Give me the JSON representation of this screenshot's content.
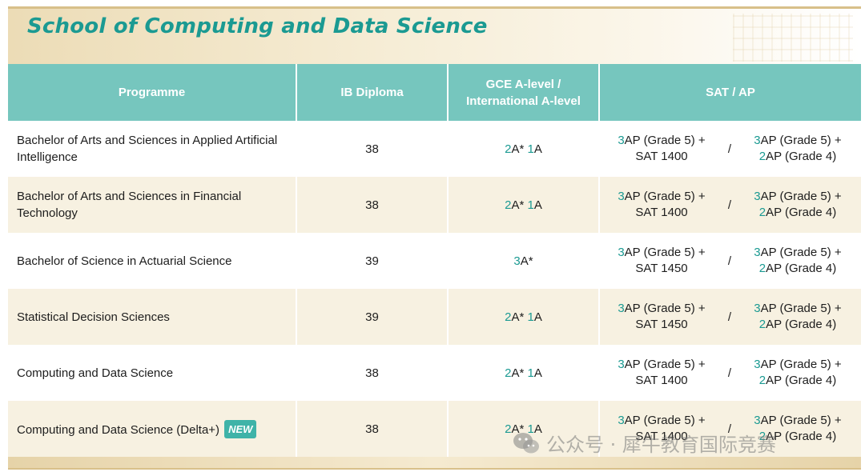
{
  "title": "School of Computing and Data Science",
  "columns": {
    "programme": "Programme",
    "ib": "IB Diploma",
    "gce_line1": "GCE A-level /",
    "gce_line2": "International A-level",
    "sat": "SAT / AP"
  },
  "rows": [
    {
      "programme": "Bachelor of Arts and Sciences in Applied Artificial Intelligence",
      "ib": "38",
      "gce": {
        "n1": "2",
        "t1": "A* ",
        "n2": "1",
        "t2": "A"
      },
      "sat_left": {
        "n": "3",
        "t": "AP (Grade 5) +",
        "line2": "SAT 1400"
      },
      "slash": "/",
      "sat_right": {
        "n": "3",
        "t": "AP (Grade 5) +",
        "n2": "2",
        "t2": "AP (Grade 4)"
      }
    },
    {
      "programme": "Bachelor of Arts and Sciences in Financial Technology",
      "ib": "38",
      "gce": {
        "n1": "2",
        "t1": "A* ",
        "n2": "1",
        "t2": "A"
      },
      "sat_left": {
        "n": "3",
        "t": "AP (Grade 5) +",
        "line2": "SAT 1400"
      },
      "slash": "/",
      "sat_right": {
        "n": "3",
        "t": "AP (Grade 5) +",
        "n2": "2",
        "t2": "AP (Grade 4)"
      }
    },
    {
      "programme": "Bachelor of Science in Actuarial Science",
      "ib": "39",
      "gce": {
        "n1": "3",
        "t1": "A*",
        "n2": "",
        "t2": ""
      },
      "sat_left": {
        "n": "3",
        "t": "AP (Grade 5) +",
        "line2": "SAT 1450"
      },
      "slash": "/",
      "sat_right": {
        "n": "3",
        "t": "AP (Grade 5) +",
        "n2": "2",
        "t2": "AP (Grade 4)"
      }
    },
    {
      "programme": "Statistical Decision Sciences",
      "ib": "39",
      "gce": {
        "n1": "2",
        "t1": "A* ",
        "n2": "1",
        "t2": "A"
      },
      "sat_left": {
        "n": "3",
        "t": "AP (Grade 5) +",
        "line2": "SAT 1450"
      },
      "slash": "/",
      "sat_right": {
        "n": "3",
        "t": "AP (Grade 5) +",
        "n2": "2",
        "t2": "AP (Grade 4)"
      }
    },
    {
      "programme": "Computing and Data Science",
      "ib": "38",
      "gce": {
        "n1": "2",
        "t1": "A* ",
        "n2": "1",
        "t2": "A"
      },
      "sat_left": {
        "n": "3",
        "t": "AP (Grade 5) +",
        "line2": "SAT 1400"
      },
      "slash": "/",
      "sat_right": {
        "n": "3",
        "t": "AP (Grade 5) +",
        "n2": "2",
        "t2": "AP (Grade 4)"
      }
    },
    {
      "programme": "Computing and Data Science (Delta+)",
      "badge": "NEW",
      "ib": "38",
      "gce": {
        "n1": "2",
        "t1": "A* ",
        "n2": "1",
        "t2": "A"
      },
      "sat_left": {
        "n": "3",
        "t": "AP (Grade 5) +",
        "line2": "SAT 1400"
      },
      "slash": "/",
      "sat_right": {
        "n": "3",
        "t": "AP (Grade 5) +",
        "n2": "2",
        "t2": "AP (Grade 4)"
      }
    }
  ],
  "watermark": "公众号 · 犀牛教育国际竞赛",
  "colors": {
    "accent": "#1b9a92",
    "header_bg": "#76c6be",
    "row_alt": "#f7f1e1"
  }
}
